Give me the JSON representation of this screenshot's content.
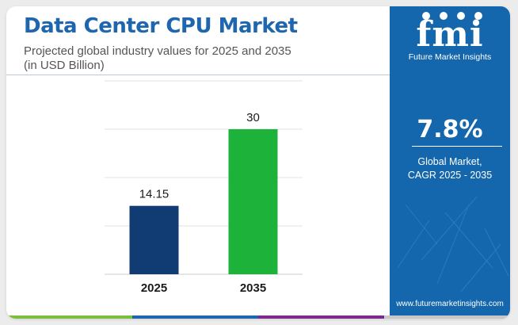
{
  "header": {
    "title": "Data Center CPU Market",
    "subtitle": "Projected global industry values for 2025 and 2035",
    "unit_note": "(in USD Billion)"
  },
  "brand": {
    "logo_text": "fmi",
    "logo_subtitle": "Future Market Insights",
    "website": "www.futuremarketinsights.com",
    "panel_color": "#1467ad"
  },
  "kpi": {
    "value": "7.8%",
    "label_line1": "Global Market,",
    "label_line2": "CAGR 2025 - 2035"
  },
  "chart_data": {
    "type": "bar",
    "categories": [
      "2025",
      "2035"
    ],
    "values": [
      14.15,
      30
    ],
    "data_labels": [
      "14.15",
      "30"
    ],
    "colors": [
      "#103b73",
      "#1db33b"
    ],
    "ylim": [
      0,
      40
    ],
    "grid": true,
    "legend": "none"
  },
  "accent_colors": [
    "#7cbe3b",
    "#1e66ae",
    "#7b2a8e",
    "#c7c7c7"
  ]
}
